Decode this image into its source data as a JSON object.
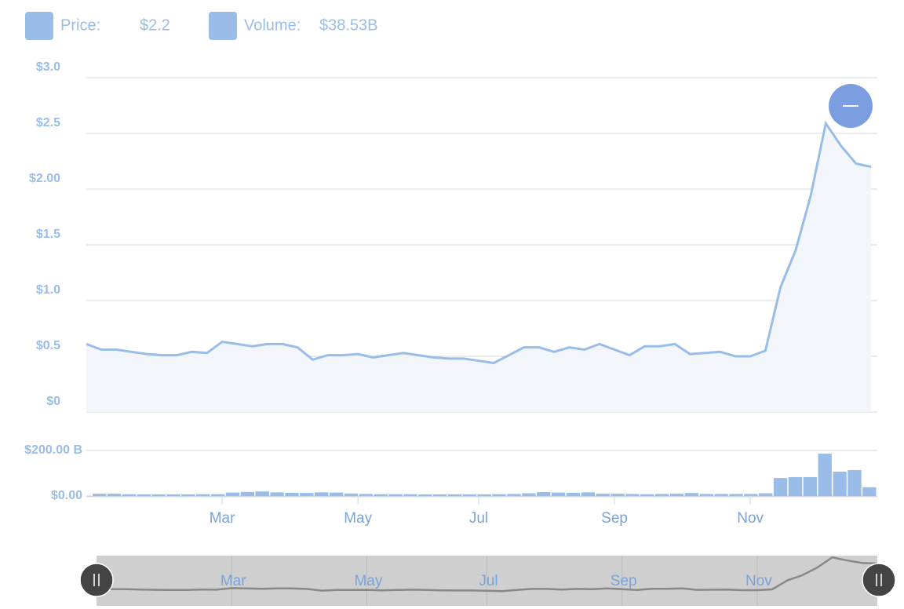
{
  "legend": {
    "price_label": "Price:",
    "price_value": "$2.2",
    "volume_label": "Volume:",
    "volume_value": "$38.53B"
  },
  "chart_data": [
    {
      "type": "area",
      "name": "Price",
      "color": "#99bde8",
      "categories": [
        null,
        null,
        null,
        null,
        null,
        null,
        null,
        null,
        null,
        "Mar",
        null,
        null,
        null,
        null,
        null,
        null,
        null,
        null,
        "May",
        null,
        null,
        null,
        null,
        null,
        null,
        null,
        "Jul",
        null,
        null,
        null,
        null,
        null,
        null,
        null,
        null,
        "Sep",
        null,
        null,
        null,
        null,
        null,
        null,
        null,
        null,
        "Nov",
        null,
        null,
        null,
        null,
        null,
        null,
        null,
        null
      ],
      "values": [
        0.61,
        0.56,
        0.56,
        0.54,
        0.52,
        0.51,
        0.51,
        0.54,
        0.53,
        0.63,
        0.61,
        0.59,
        0.61,
        0.61,
        0.58,
        0.47,
        0.51,
        0.51,
        0.52,
        0.49,
        0.51,
        0.53,
        0.51,
        0.49,
        0.48,
        0.48,
        0.46,
        0.44,
        0.51,
        0.58,
        0.58,
        0.54,
        0.58,
        0.56,
        0.61,
        0.56,
        0.51,
        0.59,
        0.59,
        0.61,
        0.52,
        0.53,
        0.54,
        0.5,
        0.5,
        0.55,
        1.12,
        1.45,
        1.94,
        2.59,
        2.39,
        2.23,
        2.2
      ],
      "ylim": [
        0,
        3
      ],
      "yticks": [
        {
          "value": 0,
          "label": "$0"
        },
        {
          "value": 0.5,
          "label": "$0.5"
        },
        {
          "value": 1,
          "label": "$1.0"
        },
        {
          "value": 1.5,
          "label": "$1.5"
        },
        {
          "value": 2,
          "label": "$2.00"
        },
        {
          "value": 2.5,
          "label": "$2.5"
        },
        {
          "value": 3,
          "label": "$3.0"
        }
      ],
      "grid": true
    },
    {
      "type": "bar",
      "name": "Volume",
      "color": "#99bde8",
      "values": [
        10,
        10,
        8,
        7,
        7,
        7,
        7,
        8,
        8,
        15,
        18,
        20,
        16,
        14,
        13,
        16,
        15,
        11,
        9,
        8,
        8,
        8,
        7,
        7,
        7,
        7,
        7,
        8,
        9,
        12,
        17,
        15,
        14,
        16,
        10,
        10,
        9,
        8,
        9,
        10,
        13,
        9,
        9,
        9,
        9,
        12,
        79,
        83,
        83,
        186,
        107,
        114,
        38.53
      ],
      "ylim": [
        0,
        200
      ],
      "yticks": [
        {
          "value": 0,
          "label": "$0.00"
        },
        {
          "value": 200,
          "label": "$200.00 B"
        }
      ],
      "grid": true
    }
  ]
}
